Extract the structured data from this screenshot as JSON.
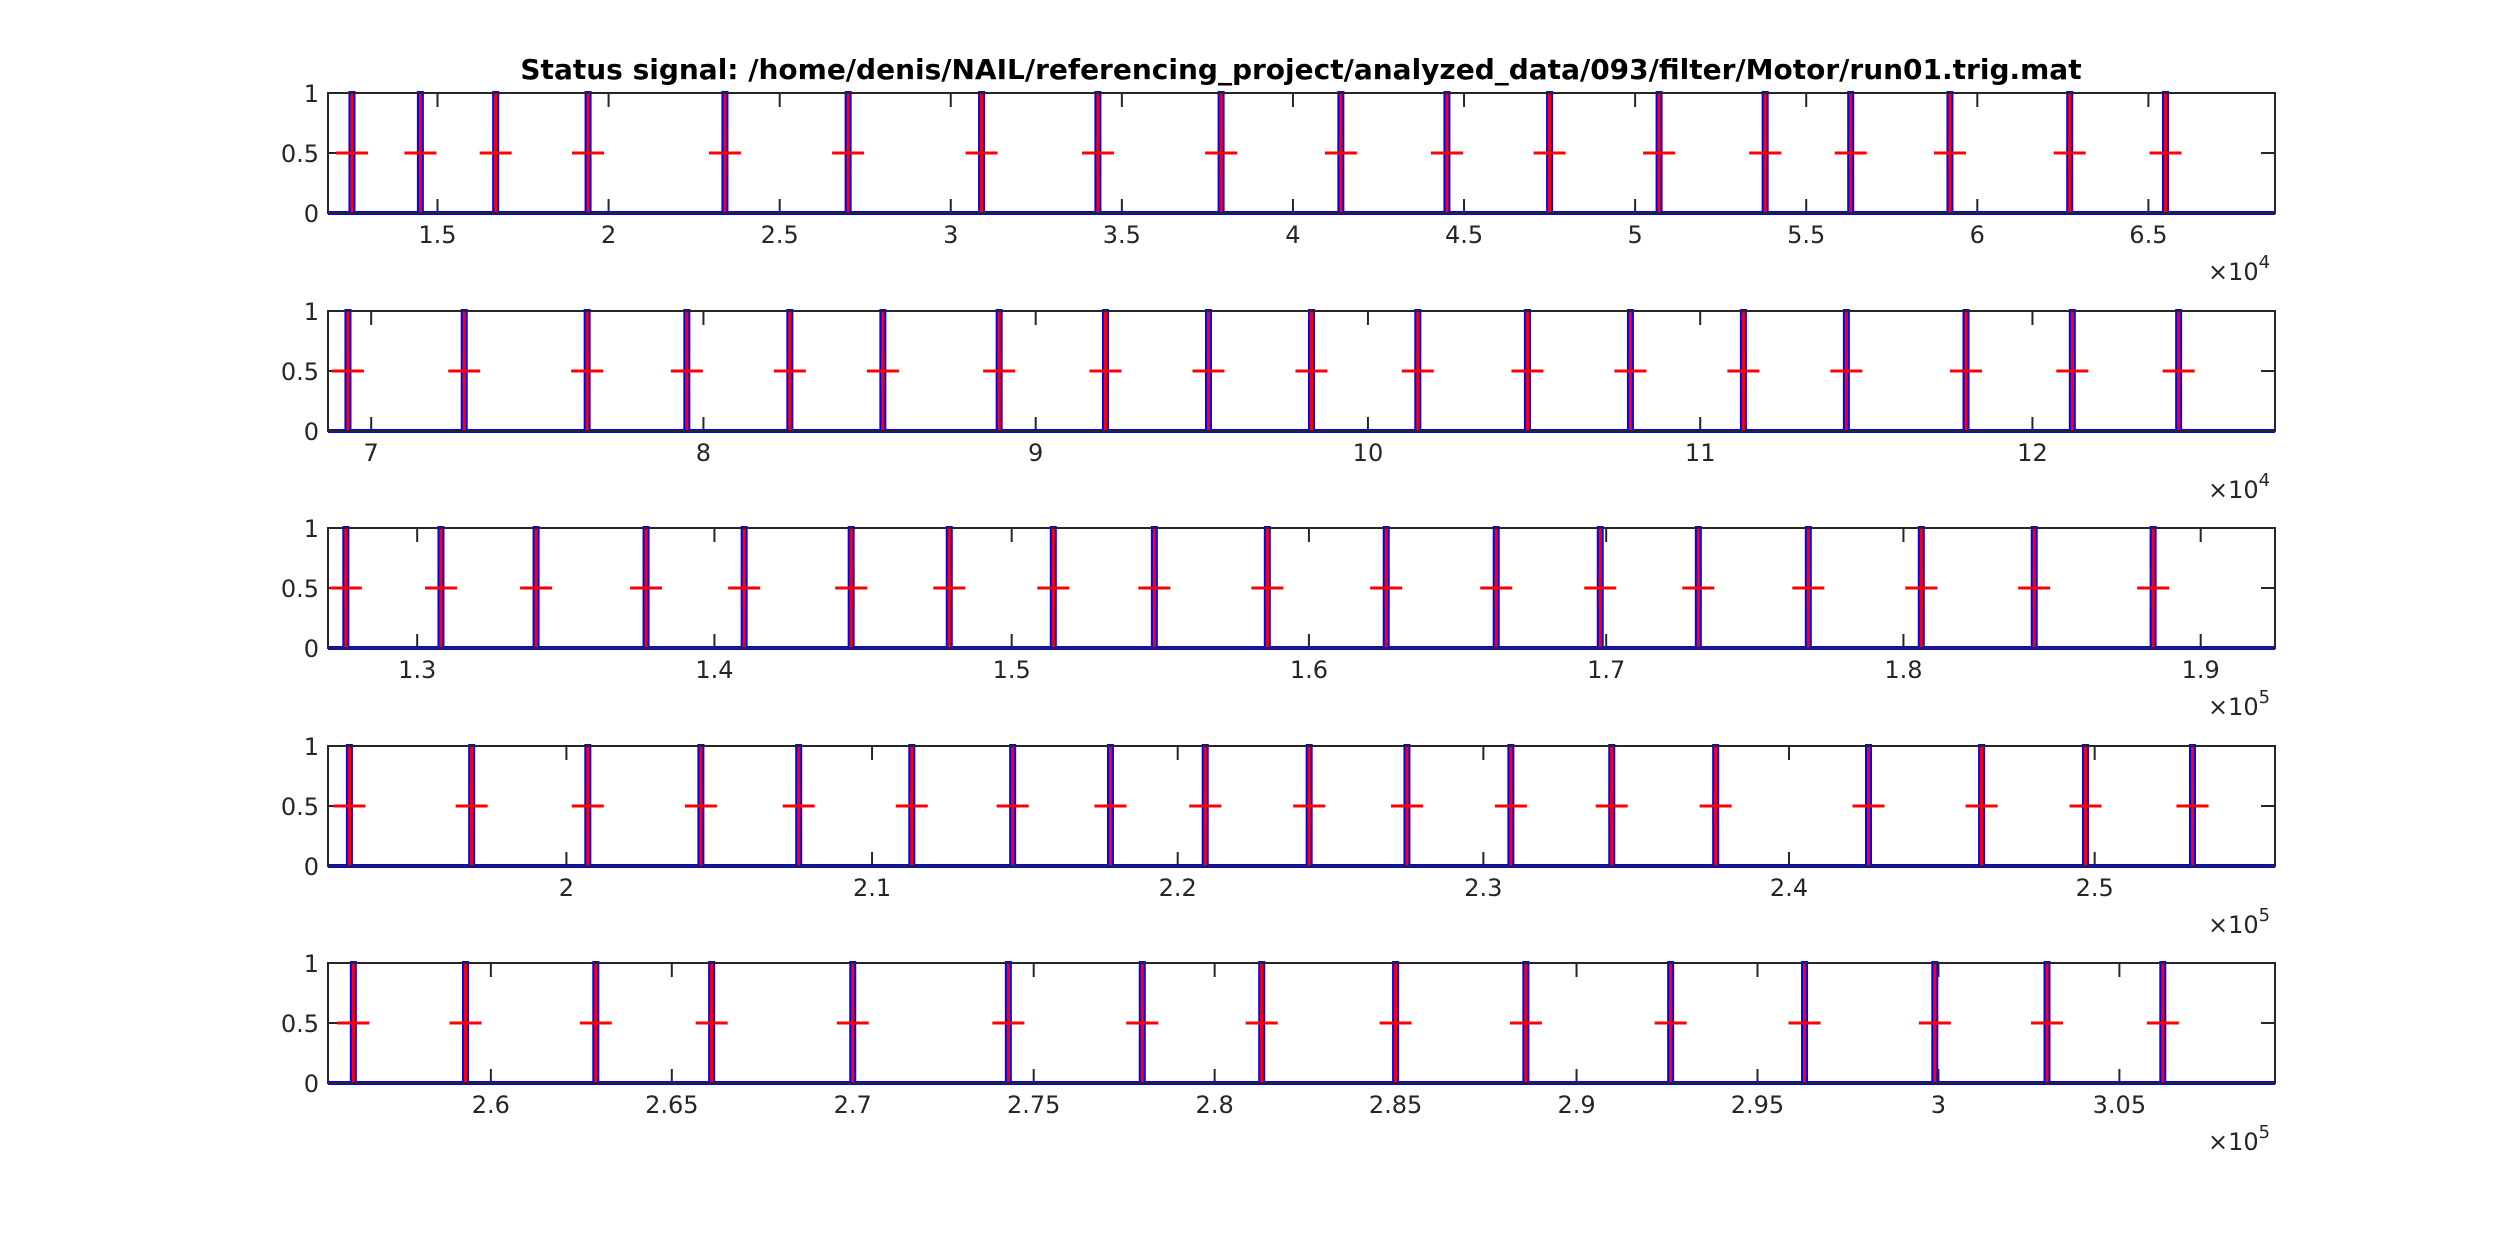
{
  "colors": {
    "signal": "#0000ff",
    "trigger": "#ff0000",
    "axes": "#262626",
    "background": "#ffffff"
  },
  "chart_data": [
    {
      "type": "line",
      "title": "Status signal: /home/denis/NAIL/referencing_project/analyzed_data/093/filter/Motor/run01.trig.mat",
      "exponent_label": "×10",
      "exponent": "4",
      "xlim": [
        11800,
        68700
      ],
      "ylim": [
        0,
        1
      ],
      "xticks": [
        15000,
        20000,
        25000,
        30000,
        35000,
        40000,
        45000,
        50000,
        55000,
        60000,
        65000
      ],
      "xtick_labels": [
        "1.5",
        "2",
        "2.5",
        "3",
        "3.5",
        "4",
        "4.5",
        "5",
        "5.5",
        "6",
        "6.5"
      ],
      "yticks": [
        0,
        0.5,
        1
      ],
      "ytick_labels": [
        "0",
        "0.5",
        "1"
      ],
      "trigger_x": [
        12500,
        14500,
        16700,
        19400,
        23400,
        27000,
        30900,
        34300,
        37900,
        41400,
        44500,
        47500,
        50700,
        53800,
        56300,
        59200,
        62700,
        65500
      ]
    },
    {
      "type": "line",
      "exponent_label": "×10",
      "exponent": "4",
      "xlim": [
        68700,
        127300
      ],
      "ylim": [
        0,
        1
      ],
      "xticks": [
        70000,
        80000,
        90000,
        100000,
        110000,
        120000
      ],
      "xtick_labels": [
        "7",
        "8",
        "9",
        "10",
        "11",
        "12"
      ],
      "yticks": [
        0,
        0.5,
        1
      ],
      "ytick_labels": [
        "0",
        "0.5",
        "1"
      ],
      "trigger_x": [
        69300,
        72800,
        76500,
        79500,
        82600,
        85400,
        88900,
        92100,
        95200,
        98300,
        101500,
        104800,
        107900,
        111300,
        114400,
        118000,
        121200,
        124400
      ]
    },
    {
      "type": "line",
      "exponent_label": "×10",
      "exponent": "5",
      "xlim": [
        127000,
        192500
      ],
      "ylim": [
        0,
        1
      ],
      "xticks": [
        130000,
        140000,
        150000,
        160000,
        170000,
        180000,
        190000
      ],
      "xtick_labels": [
        "1.3",
        "1.4",
        "1.5",
        "1.6",
        "1.7",
        "1.8",
        "1.9"
      ],
      "yticks": [
        0,
        0.5,
        1
      ],
      "ytick_labels": [
        "0",
        "0.5",
        "1"
      ],
      "trigger_x": [
        127600,
        130800,
        134000,
        137700,
        141000,
        144600,
        147900,
        151400,
        154800,
        158600,
        162600,
        166300,
        169800,
        173100,
        176800,
        180600,
        184400,
        188400
      ]
    },
    {
      "type": "line",
      "exponent_label": "×10",
      "exponent": "5",
      "xlim": [
        192200,
        255900
      ],
      "ylim": [
        0,
        1
      ],
      "xticks": [
        200000,
        210000,
        220000,
        230000,
        240000,
        250000
      ],
      "xtick_labels": [
        "2",
        "2.1",
        "2.2",
        "2.3",
        "2.4",
        "2.5"
      ],
      "yticks": [
        0,
        0.5,
        1
      ],
      "ytick_labels": [
        "0",
        "0.5",
        "1"
      ],
      "trigger_x": [
        192900,
        196900,
        200700,
        204400,
        207600,
        211300,
        214600,
        217800,
        220900,
        224300,
        227500,
        230900,
        234200,
        237600,
        242600,
        246300,
        249700,
        253200
      ]
    },
    {
      "type": "line",
      "exponent_label": "×10",
      "exponent": "5",
      "xlim": [
        255500,
        309300
      ],
      "ylim": [
        0,
        1
      ],
      "xticks": [
        260000,
        265000,
        270000,
        275000,
        280000,
        285000,
        290000,
        295000,
        300000,
        305000
      ],
      "xtick_labels": [
        "2.6",
        "2.65",
        "2.7",
        "2.75",
        "2.8",
        "2.85",
        "2.9",
        "2.95",
        "3",
        "3.05"
      ],
      "yticks": [
        0,
        0.5,
        1
      ],
      "ytick_labels": [
        "0",
        "0.5",
        "1"
      ],
      "trigger_x": [
        256200,
        259300,
        262900,
        266100,
        270000,
        274300,
        278000,
        281300,
        285000,
        288600,
        292600,
        296300,
        299900,
        303000,
        306200
      ]
    }
  ]
}
